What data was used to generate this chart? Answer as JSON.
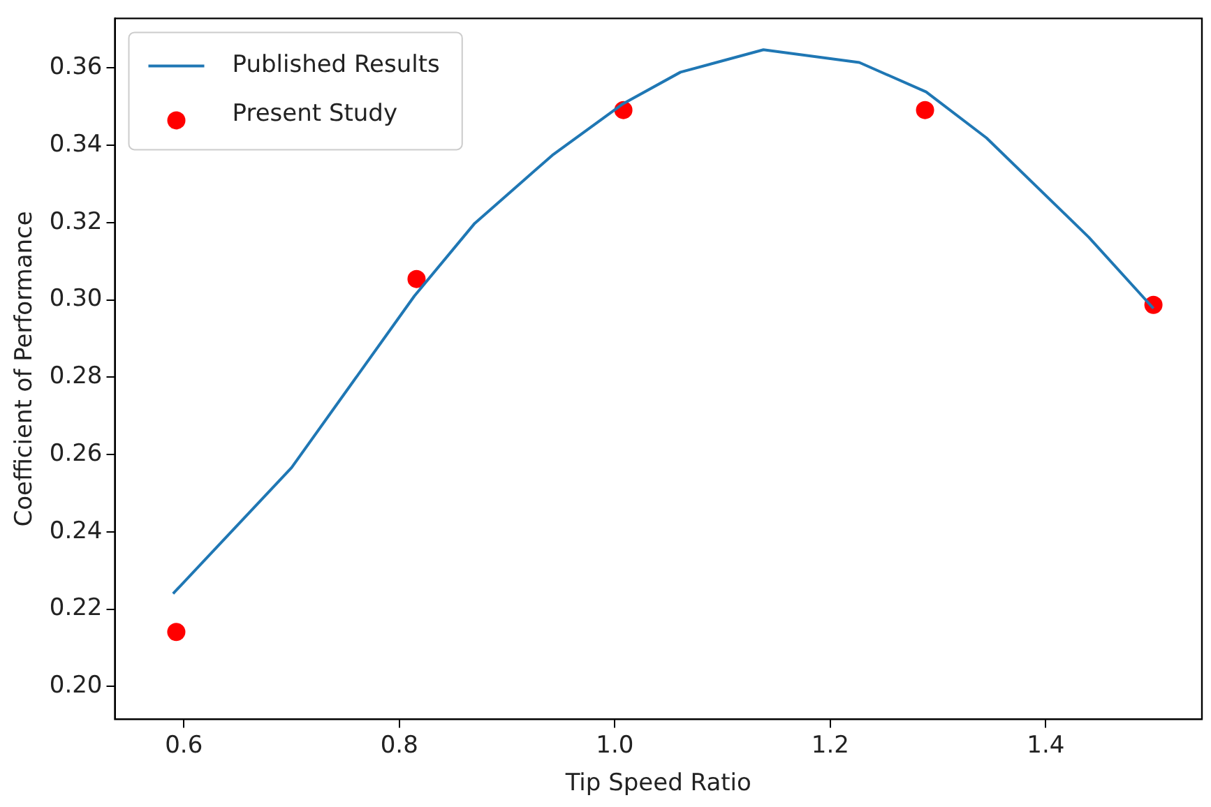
{
  "chart_data": {
    "type": "line",
    "xlabel": "Tip Speed Ratio",
    "ylabel": "Coefficient of Performance",
    "xlim": [
      0.536,
      1.545
    ],
    "xticks": [
      {
        "value": 0.6,
        "label": "0.6"
      },
      {
        "value": 0.8,
        "label": "0.8"
      },
      {
        "value": 1.0,
        "label": "1.0"
      },
      {
        "value": 1.2,
        "label": "1.2"
      },
      {
        "value": 1.4,
        "label": "1.4"
      }
    ],
    "ylim": [
      0.1915,
      0.3728
    ],
    "yticks": [
      {
        "value": 0.2,
        "label": "0.20"
      },
      {
        "value": 0.22,
        "label": "0.22"
      },
      {
        "value": 0.24,
        "label": "0.24"
      },
      {
        "value": 0.26,
        "label": "0.26"
      },
      {
        "value": 0.28,
        "label": "0.28"
      },
      {
        "value": 0.3,
        "label": "0.30"
      },
      {
        "value": 0.32,
        "label": "0.32"
      },
      {
        "value": 0.34,
        "label": "0.34"
      },
      {
        "value": 0.36,
        "label": "0.36"
      }
    ],
    "grid": false,
    "legend": "top left",
    "series": [
      {
        "name": "Published Results",
        "color": "#1f77b4",
        "marker": "none",
        "x": [
          0.59,
          0.7,
          0.814,
          0.87,
          0.942,
          1.007,
          1.061,
          1.138,
          1.227,
          1.289,
          1.345,
          1.44,
          1.5
        ],
        "values": [
          0.224,
          0.2566,
          0.301,
          0.3198,
          0.3374,
          0.3506,
          0.3589,
          0.3647,
          0.3614,
          0.3538,
          0.3419,
          0.3162,
          0.2978
        ]
      },
      {
        "name": "Present Study",
        "type": "scatter",
        "color": "#ff0000",
        "marker": "circle",
        "x": [
          0.593,
          0.816,
          1.008,
          1.288,
          1.5
        ],
        "values": [
          0.2141,
          0.3054,
          0.3491,
          0.3491,
          0.2987
        ]
      }
    ]
  }
}
